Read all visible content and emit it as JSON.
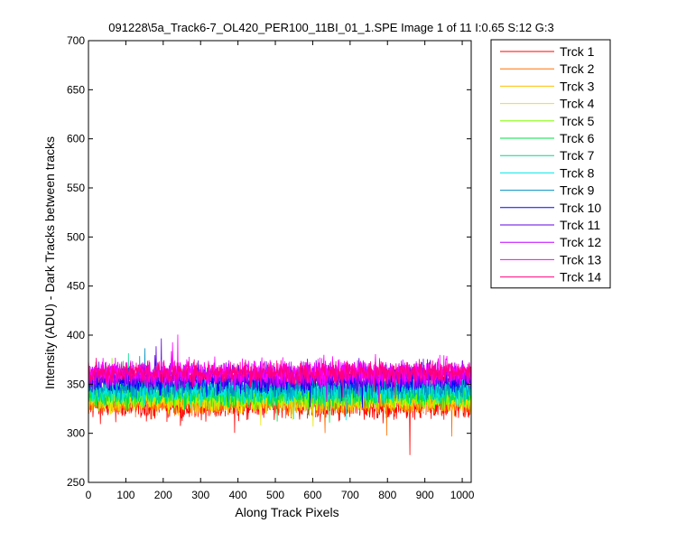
{
  "chart_data": {
    "type": "line",
    "title": "091228\\5a_Track6-7_OL420_PER100_11BI_01_1.SPE  Image 1 of 11  I:0.65  S:12  G:3",
    "xlabel": "Along Track Pixels",
    "ylabel": "Intensity (ADU) - Dark Tracks between tracks",
    "xlim": [
      0,
      1024
    ],
    "ylim": [
      250,
      700
    ],
    "xticks": [
      0,
      100,
      200,
      300,
      400,
      500,
      600,
      700,
      800,
      900,
      1000
    ],
    "yticks": [
      250,
      300,
      350,
      400,
      450,
      500,
      550,
      600,
      650,
      700
    ],
    "grid": false,
    "legend_position": "outside-right-top",
    "n_points": 1024,
    "series": [
      {
        "name": "Trck 1",
        "color": "#ff0000",
        "mean": 328,
        "spread": 12
      },
      {
        "name": "Trck 2",
        "color": "#ff7000",
        "mean": 332,
        "spread": 11
      },
      {
        "name": "Trck 3",
        "color": "#ffc000",
        "mean": 334,
        "spread": 11
      },
      {
        "name": "Trck 4",
        "color": "#e8e800",
        "mean": 336,
        "spread": 11
      },
      {
        "name": "Trck 5",
        "color": "#80ff00",
        "mean": 338,
        "spread": 11
      },
      {
        "name": "Trck 6",
        "color": "#00e040",
        "mean": 340,
        "spread": 11
      },
      {
        "name": "Trck 7",
        "color": "#00d890",
        "mean": 343,
        "spread": 11
      },
      {
        "name": "Trck 8",
        "color": "#00e8e8",
        "mean": 345,
        "spread": 12
      },
      {
        "name": "Trck 9",
        "color": "#0090c0",
        "mean": 348,
        "spread": 11
      },
      {
        "name": "Trck 10",
        "color": "#0000ff",
        "mean": 355,
        "spread": 11
      },
      {
        "name": "Trck 11",
        "color": "#6000e0",
        "mean": 358,
        "spread": 11
      },
      {
        "name": "Trck 12",
        "color": "#c000ff",
        "mean": 360,
        "spread": 11
      },
      {
        "name": "Trck 13",
        "color": "#ff00ff",
        "mean": 362,
        "spread": 11
      },
      {
        "name": "Trck 14",
        "color": "#ff0080",
        "mean": 362,
        "spread": 10
      }
    ]
  }
}
